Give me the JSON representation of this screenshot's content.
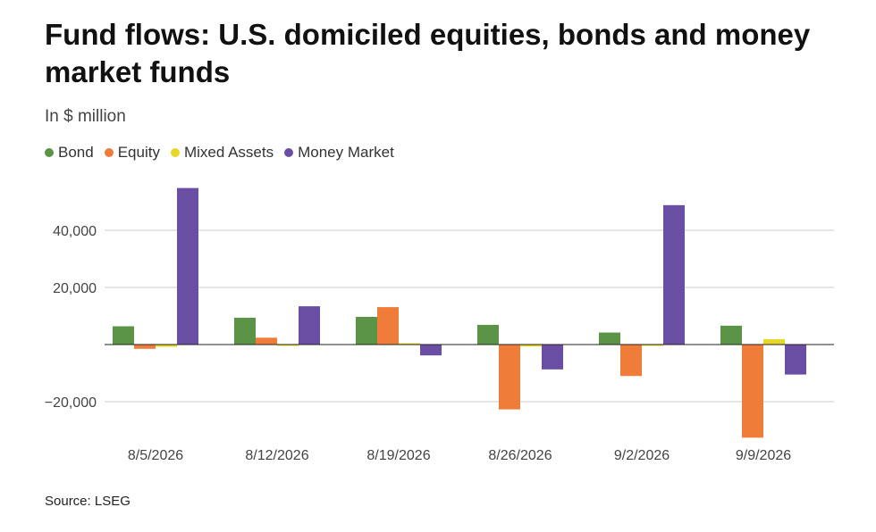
{
  "chart_data": {
    "type": "bar",
    "title": "Fund flows: U.S. domiciled equities, bonds and money market funds",
    "subtitle": "In $ million",
    "source": "Source: LSEG",
    "legend_position": "top-left",
    "grid": true,
    "ylim": [
      -30000,
      55000
    ],
    "yticks": [
      -20000,
      20000,
      40000
    ],
    "ytick_labels": [
      "−20,000",
      "20,000",
      "40,000"
    ],
    "categories": [
      "8/5/2026",
      "8/12/2026",
      "8/19/2026",
      "8/26/2026",
      "9/2/2026",
      "9/9/2026"
    ],
    "series": [
      {
        "name": "Bond",
        "color": "#5b9447",
        "values": [
          6400,
          9400,
          9700,
          6900,
          4200,
          6600
        ]
      },
      {
        "name": "Equity",
        "color": "#f07c3a",
        "values": [
          -1500,
          2400,
          13100,
          -22700,
          -11000,
          -32600
        ]
      },
      {
        "name": "Mixed Assets",
        "color": "#e6d829",
        "values": [
          -800,
          -300,
          0,
          -700,
          -300,
          1900
        ]
      },
      {
        "name": "Money Market",
        "color": "#6a4ea3",
        "values": [
          54800,
          13400,
          -3800,
          -8700,
          48800,
          -10500
        ]
      }
    ]
  }
}
